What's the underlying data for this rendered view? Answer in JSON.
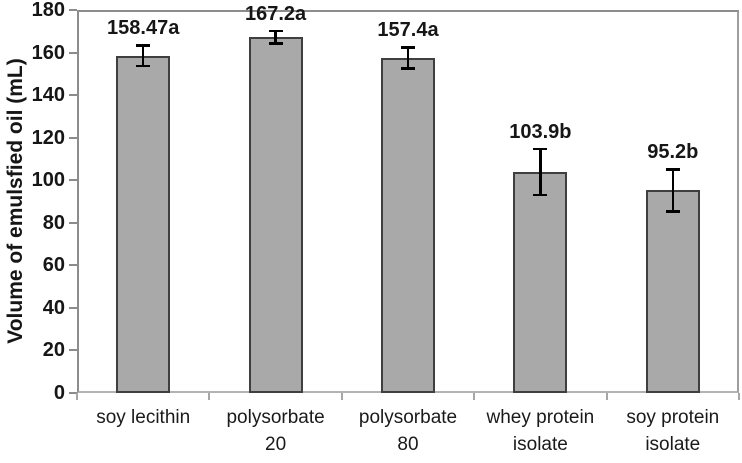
{
  "chart_data": {
    "type": "bar",
    "title": "",
    "xlabel": "",
    "ylabel": "Volume of emulsfied oil (mL)",
    "ylim": [
      0,
      180
    ],
    "ytick_step": 20,
    "grid": false,
    "legend": null,
    "categories": [
      "soy lecithin",
      "polysorbate 20",
      "polysorbate 80",
      "whey protein isolate",
      "soy protein isolate"
    ],
    "category_label_lines": [
      "soy lecithin",
      "polysorbate\n20",
      "polysorbate\n80",
      "whey protein\nisolate",
      "soy protein\nisolate"
    ],
    "values": [
      158.47,
      167.2,
      157.4,
      103.9,
      95.2
    ],
    "error_bars_plus_minus": [
      5,
      3,
      5,
      11,
      10
    ],
    "data_labels": [
      "158.47a",
      "167.2a",
      "157.4a",
      "103.9b",
      "95.2b"
    ],
    "colors": {
      "bar_fill": "#a9a9a9",
      "bar_border": "#3f3f3f",
      "axis_line": "#8c8c8c",
      "x_axis_line": "#b3b3b3",
      "error_bar": "#000000",
      "text": "#161616",
      "background": "#ffffff"
    }
  }
}
